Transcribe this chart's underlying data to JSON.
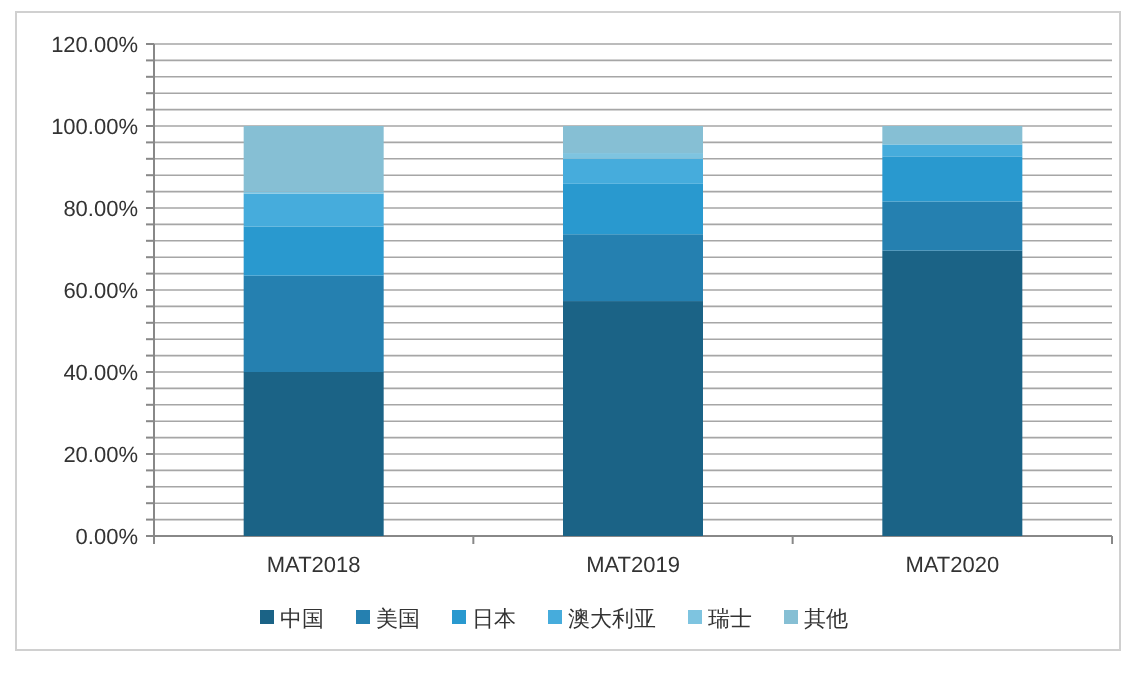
{
  "chart_data": {
    "type": "bar",
    "stacked": true,
    "categories": [
      "MAT2018",
      "MAT2019",
      "MAT2020"
    ],
    "series": [
      {
        "name": "中国",
        "color": "#1b6386",
        "values": [
          40,
          57.3,
          69.6
        ]
      },
      {
        "name": "美国",
        "color": "#2580b0",
        "values": [
          23.5,
          16.3,
          12
        ]
      },
      {
        "name": "日本",
        "color": "#2999cf",
        "values": [
          12,
          12.3,
          11
        ]
      },
      {
        "name": "澳大利亚",
        "color": "#46acdc",
        "values": [
          8,
          6.1,
          2.9
        ]
      },
      {
        "name": "瑞士",
        "color": "#7ec4e0",
        "values": [
          0.5,
          1.4,
          null
        ]
      },
      {
        "name": "其他",
        "color": "#86bfd4",
        "values": [
          16,
          6.6,
          4.5
        ]
      }
    ],
    "ylim": [
      0,
      120
    ],
    "yticks": [
      {
        "value": 0,
        "label": "0.00%"
      },
      {
        "value": 4,
        "label": null
      },
      {
        "value": 8,
        "label": null
      },
      {
        "value": 12,
        "label": null
      },
      {
        "value": 16,
        "label": null
      },
      {
        "value": 20,
        "label": "20.00%"
      },
      {
        "value": 24,
        "label": null
      },
      {
        "value": 28,
        "label": null
      },
      {
        "value": 32,
        "label": null
      },
      {
        "value": 36,
        "label": null
      },
      {
        "value": 40,
        "label": "40.00%"
      },
      {
        "value": 44,
        "label": null
      },
      {
        "value": 48,
        "label": null
      },
      {
        "value": 52,
        "label": null
      },
      {
        "value": 56,
        "label": null
      },
      {
        "value": 60,
        "label": "60.00%"
      },
      {
        "value": 64,
        "label": null
      },
      {
        "value": 68,
        "label": null
      },
      {
        "value": 72,
        "label": null
      },
      {
        "value": 76,
        "label": null
      },
      {
        "value": 80,
        "label": "80.00%"
      },
      {
        "value": 84,
        "label": null
      },
      {
        "value": 88,
        "label": null
      },
      {
        "value": 92,
        "label": null
      },
      {
        "value": 96,
        "label": null
      },
      {
        "value": 100,
        "label": "100.00%"
      },
      {
        "value": 104,
        "label": null
      },
      {
        "value": 108,
        "label": null
      },
      {
        "value": 112,
        "label": null
      },
      {
        "value": 116,
        "label": null
      },
      {
        "value": 120,
        "label": "120.00%"
      }
    ],
    "grid": "y",
    "legend": "bottom"
  }
}
